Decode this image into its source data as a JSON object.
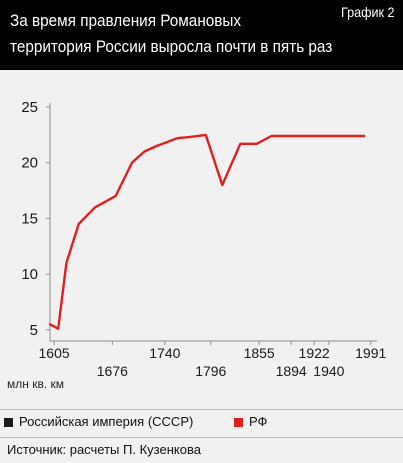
{
  "header": {
    "title_line1": "За время правления Романовых",
    "title_line2": "территория России выросла почти в пять раз",
    "badge": "График 2"
  },
  "unit_label": "млн кв. км",
  "legend": {
    "items": [
      {
        "label": "Российская империя (СССР)",
        "color": "#1a1a1a"
      },
      {
        "label": "РФ",
        "color": "#e0201f"
      }
    ]
  },
  "source": "Источник: расчеты П. Кузенкова",
  "colors": {
    "header_bg": "#000000",
    "panel_bg": "#f1f1f1",
    "line": "#e0201f",
    "axis": "#8c8c8c"
  },
  "chart_data": {
    "type": "line",
    "title": "За время правления Романовых территория России выросла почти в пять раз",
    "ylabel": "млн кв. км",
    "xlim": [
      1600,
      1995
    ],
    "ylim": [
      4,
      25
    ],
    "y_ticks": [
      5,
      10,
      15,
      20,
      25
    ],
    "x_ticks_top": [
      1605,
      1740,
      1855,
      1922,
      1991
    ],
    "x_ticks_bottom": [
      1676,
      1796,
      1894,
      1940
    ],
    "grid": false,
    "legend_position": "bottom",
    "series": [
      {
        "name": "РФ",
        "color": "#e0201f",
        "x": [
          1600,
          1610,
          1620,
          1635,
          1655,
          1680,
          1700,
          1715,
          1730,
          1755,
          1770,
          1790,
          1810,
          1832,
          1852,
          1870,
          1905,
          1925,
          1948,
          1965,
          1983
        ],
        "y": [
          5.5,
          5.1,
          11.0,
          14.5,
          16.0,
          17.0,
          20.0,
          21.0,
          21.5,
          22.2,
          22.3,
          22.5,
          18.0,
          21.7,
          21.7,
          22.4,
          22.4,
          22.4,
          22.4,
          22.4,
          22.4
        ]
      }
    ]
  }
}
